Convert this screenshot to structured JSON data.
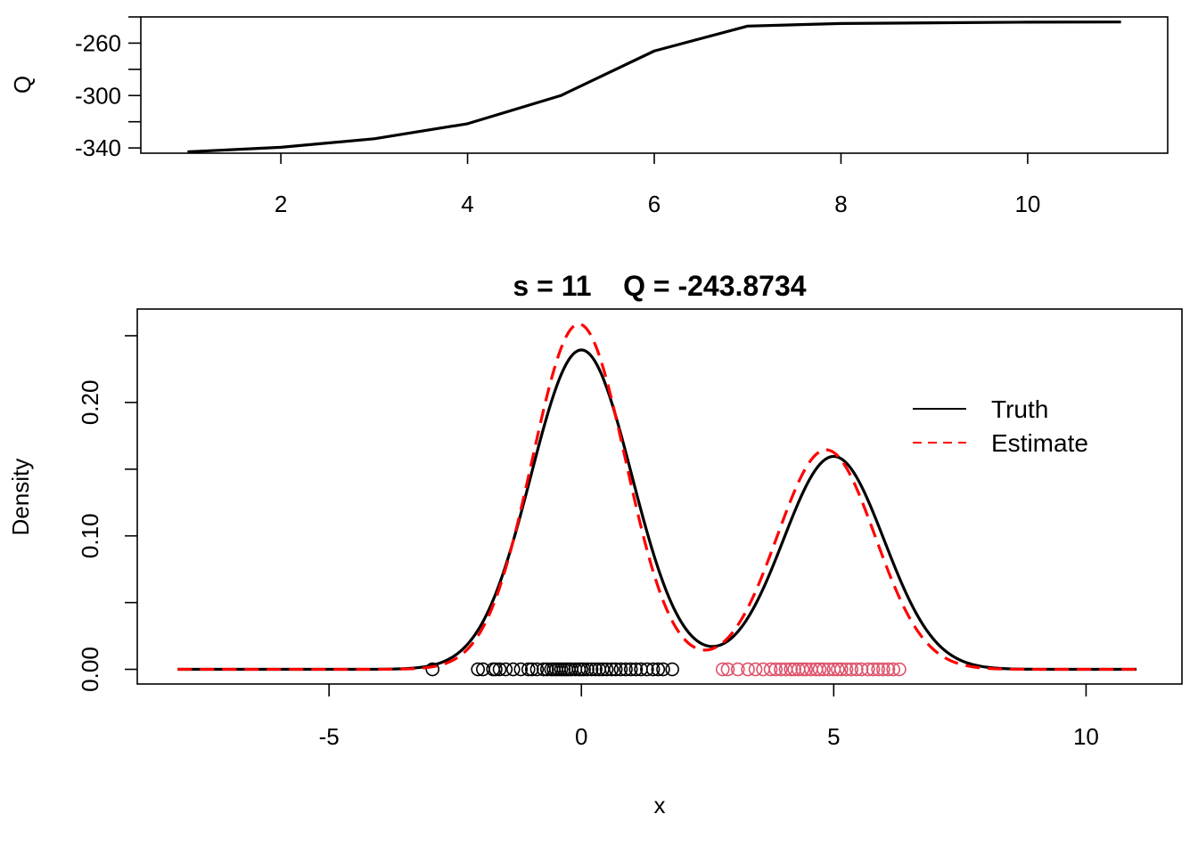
{
  "chart_data": [
    {
      "type": "line",
      "title": "",
      "xlabel": "",
      "ylabel": "Q",
      "xlim": [
        0.5,
        11.5
      ],
      "ylim": [
        -344,
        -240
      ],
      "x_ticks": [
        2,
        4,
        6,
        8,
        10
      ],
      "y_ticks": [
        -260,
        -300,
        -340
      ],
      "y_minor_ticks": [
        -240,
        -280,
        -320
      ],
      "series": [
        {
          "x": [
            1,
            2,
            3,
            4,
            5,
            6,
            7,
            8,
            9,
            10,
            11
          ],
          "y": [
            -343,
            -339.5,
            -333,
            -321.5,
            -300,
            -266,
            -247,
            -245,
            -244.5,
            -244,
            -243.8734
          ],
          "color": "#000000"
        }
      ]
    },
    {
      "type": "line",
      "title": "s = 11    Q = -243.8734",
      "xlabel": "x",
      "ylabel": "Density",
      "xlim": [
        -8.8,
        11.9
      ],
      "ylim": [
        -0.011,
        0.27
      ],
      "x_ticks": [
        -5,
        0,
        5,
        10
      ],
      "y_ticks": [
        0.0,
        0.1,
        0.2
      ],
      "y_tick_labels": [
        "0.00",
        "0.10",
        "0.20"
      ],
      "y_minor_ticks": [
        0.05,
        0.15,
        0.25
      ],
      "legend": {
        "position": "top-right",
        "entries": [
          {
            "label": "Truth",
            "color": "#000000",
            "style": "solid"
          },
          {
            "label": "Estimate",
            "color": "#ff0000",
            "style": "dashed"
          }
        ]
      },
      "series": [
        {
          "name": "Truth",
          "style": "solid",
          "color": "#000000",
          "mixture": [
            {
              "weight": 0.6,
              "mean": 0,
              "sd": 1
            },
            {
              "weight": 0.4,
              "mean": 5,
              "sd": 1
            }
          ],
          "x_range": [
            -8,
            11
          ]
        },
        {
          "name": "Estimate",
          "style": "dashed",
          "color": "#ff0000",
          "mixture": [
            {
              "weight": 0.6,
              "mean": -0.05,
              "sd": 0.925
            },
            {
              "weight": 0.4,
              "mean": 4.85,
              "sd": 0.97
            }
          ],
          "x_range": [
            -8,
            11
          ]
        }
      ],
      "points": {
        "y": 0,
        "groups": [
          {
            "color": "#000000",
            "x": [
              -2.95,
              -2.05,
              -1.95,
              -1.75,
              -1.7,
              -1.62,
              -1.5,
              -1.35,
              -1.2,
              -1.05,
              -0.98,
              -0.88,
              -0.75,
              -0.68,
              -0.6,
              -0.55,
              -0.5,
              -0.45,
              -0.4,
              -0.35,
              -0.3,
              -0.25,
              -0.2,
              -0.12,
              -0.05,
              0.0,
              0.05,
              0.12,
              0.2,
              0.28,
              0.35,
              0.42,
              0.5,
              0.6,
              0.68,
              0.78,
              0.88,
              0.98,
              1.08,
              1.18,
              1.3,
              1.42,
              1.52,
              1.62,
              1.8
            ]
          },
          {
            "color": "#df536b",
            "x": [
              2.8,
              2.9,
              3.1,
              3.3,
              3.45,
              3.6,
              3.75,
              3.85,
              3.95,
              4.05,
              4.15,
              4.22,
              4.3,
              4.38,
              4.45,
              4.55,
              4.65,
              4.72,
              4.8,
              4.9,
              5.0,
              5.08,
              5.15,
              5.25,
              5.35,
              5.45,
              5.55,
              5.68,
              5.78,
              5.88,
              5.98,
              6.08,
              6.18,
              6.3
            ]
          }
        ]
      }
    }
  ]
}
